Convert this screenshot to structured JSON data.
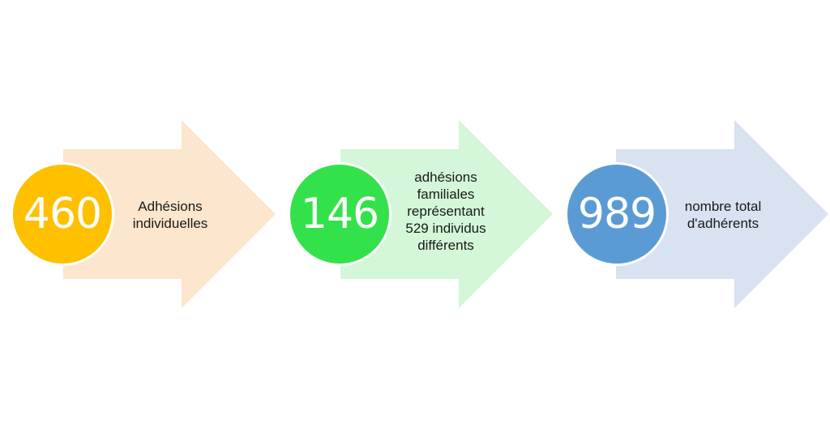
{
  "steps": [
    {
      "number": "460",
      "text": "Adhésions\nindividuelles",
      "circle_color": "#FFC000",
      "arrow_color": "#FCE6CD"
    },
    {
      "number": "146",
      "text": "adhésions\nfamiliales\nreprésentant\n529 individus\ndifférents",
      "circle_color": "#33E24A",
      "arrow_color": "#D3F7D8"
    },
    {
      "number": "989",
      "text": "nombre total\nd'adhérents",
      "circle_color": "#5B9BD5",
      "arrow_color": "#D8E2F1"
    }
  ]
}
